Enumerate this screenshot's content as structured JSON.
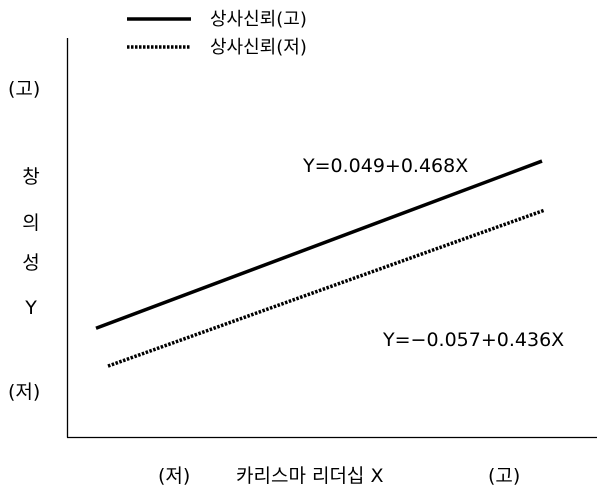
{
  "chart_data": {
    "type": "line",
    "title": "",
    "xlabel": "카리스마 리더십 X",
    "x_low_label": "(저)",
    "x_high_label": "(고)",
    "ylabel_chars": [
      "창",
      "의",
      "성",
      "Y"
    ],
    "y_high_label": "(고)",
    "y_low_label": "(저)",
    "grid": false,
    "legend_position": "top-left",
    "xlim": [
      0,
      1
    ],
    "ylim": [
      -0.25,
      0.8
    ],
    "series": [
      {
        "name": "상사신뢰(고)",
        "style": "solid",
        "intercept": 0.049,
        "slope": 0.468,
        "x": [
          0,
          1
        ],
        "values": [
          0.049,
          0.517
        ],
        "equation": "Y=0.049+0.468X"
      },
      {
        "name": "상사신뢰(저)",
        "style": "dotted",
        "intercept": -0.057,
        "slope": 0.436,
        "x": [
          0,
          1
        ],
        "values": [
          -0.057,
          0.379
        ],
        "equation": "Y=−0.057+0.436X"
      }
    ]
  }
}
